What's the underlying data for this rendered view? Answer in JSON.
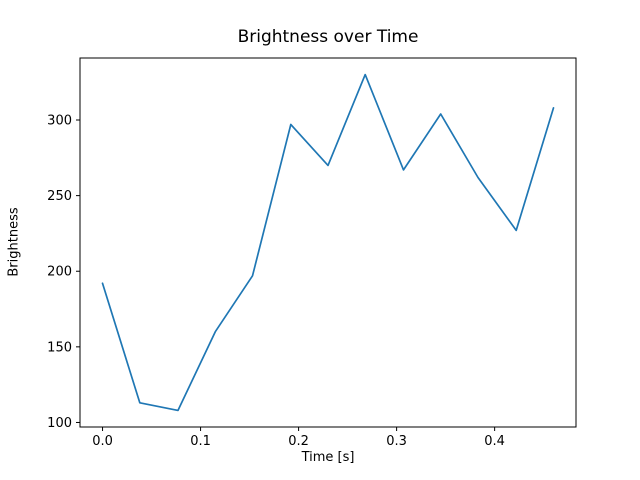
{
  "chart_data": {
    "type": "line",
    "title": "Brightness over Time",
    "xlabel": "Time [s]",
    "ylabel": "Brightness",
    "x": [
      0.0,
      0.038,
      0.077,
      0.115,
      0.153,
      0.192,
      0.23,
      0.268,
      0.307,
      0.345,
      0.383,
      0.422,
      0.46
    ],
    "y": [
      192,
      113,
      108,
      160,
      197,
      297,
      270,
      330,
      267,
      304,
      262,
      227,
      308
    ],
    "xlim": [
      -0.023,
      0.483
    ],
    "ylim": [
      97,
      341
    ],
    "xticks": [
      0.0,
      0.1,
      0.2,
      0.3,
      0.4
    ],
    "xtick_labels": [
      "0.0",
      "0.1",
      "0.2",
      "0.3",
      "0.4"
    ],
    "yticks": [
      100,
      150,
      200,
      250,
      300
    ],
    "ytick_labels": [
      "100",
      "150",
      "200",
      "250",
      "300"
    ],
    "line_color": "#1f77b4",
    "frame_color": "#000000",
    "grid": false,
    "legend_position": "none"
  }
}
